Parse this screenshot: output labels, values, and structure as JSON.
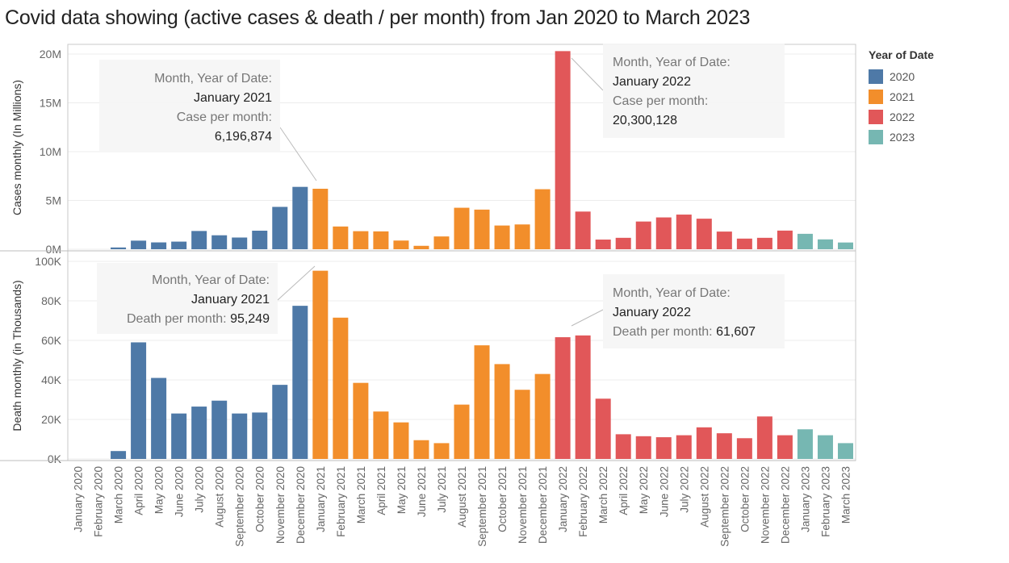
{
  "title": "Covid data  showing (active cases & death / per month) from Jan 2020 to March 2023",
  "legend": {
    "title": "Year of Date",
    "items": [
      {
        "label": "2020",
        "color": "#4e79a7"
      },
      {
        "label": "2021",
        "color": "#f28e2b"
      },
      {
        "label": "2022",
        "color": "#e15759"
      },
      {
        "label": "2023",
        "color": "#76b7b2"
      }
    ]
  },
  "chart_data": [
    {
      "type": "bar",
      "ylabel": "Cases monthly (In Millions)",
      "ylim": [
        0,
        21000000
      ],
      "yticks": [
        {
          "v": 0,
          "label": "0M"
        },
        {
          "v": 5000000,
          "label": "5M"
        },
        {
          "v": 10000000,
          "label": "10M"
        },
        {
          "v": 15000000,
          "label": "15M"
        },
        {
          "v": 20000000,
          "label": "20M"
        }
      ],
      "grid": true,
      "categories": [
        "January 2020",
        "February 2020",
        "March 2020",
        "April 2020",
        "May 2020",
        "June 2020",
        "July 2020",
        "August 2020",
        "September 2020",
        "October 2020",
        "November 2020",
        "December 2020",
        "January 2021",
        "February 2021",
        "March 2021",
        "April 2021",
        "May 2021",
        "June 2021",
        "July 2021",
        "August 2021",
        "September 2021",
        "October 2021",
        "November 2021",
        "December 2021",
        "January 2022",
        "February 2022",
        "March 2022",
        "April 2022",
        "May 2022",
        "June 2022",
        "July 2022",
        "August 2022",
        "September 2022",
        "October 2022",
        "November 2022",
        "December 2022",
        "January 2023",
        "February 2023",
        "March 2023"
      ],
      "years": [
        "2020",
        "2020",
        "2020",
        "2020",
        "2020",
        "2020",
        "2020",
        "2020",
        "2020",
        "2020",
        "2020",
        "2020",
        "2021",
        "2021",
        "2021",
        "2021",
        "2021",
        "2021",
        "2021",
        "2021",
        "2021",
        "2021",
        "2021",
        "2021",
        "2022",
        "2022",
        "2022",
        "2022",
        "2022",
        "2022",
        "2022",
        "2022",
        "2022",
        "2022",
        "2022",
        "2022",
        "2023",
        "2023",
        "2023"
      ],
      "values": [
        0,
        0,
        180000,
        880000,
        700000,
        780000,
        1870000,
        1430000,
        1200000,
        1900000,
        4340000,
        6390000,
        6196874,
        2330000,
        1850000,
        1830000,
        890000,
        350000,
        1310000,
        4250000,
        4060000,
        2430000,
        2540000,
        6150000,
        20300128,
        3860000,
        990000,
        1170000,
        2840000,
        3260000,
        3550000,
        3130000,
        1810000,
        1090000,
        1170000,
        1910000,
        1580000,
        1010000,
        690000
      ]
    },
    {
      "type": "bar",
      "ylabel": "Death monthly (in Thousands)",
      "ylim": [
        0,
        100000
      ],
      "yticks": [
        {
          "v": 0,
          "label": "0K"
        },
        {
          "v": 20000,
          "label": "20K"
        },
        {
          "v": 40000,
          "label": "40K"
        },
        {
          "v": 60000,
          "label": "60K"
        },
        {
          "v": 80000,
          "label": "80K"
        },
        {
          "v": 100000,
          "label": "100K"
        }
      ],
      "grid": true,
      "values": [
        0,
        0,
        4000,
        59000,
        41000,
        23000,
        26500,
        29500,
        23000,
        23500,
        37500,
        77500,
        95249,
        71500,
        38500,
        24000,
        18500,
        9500,
        8000,
        27500,
        57500,
        48000,
        35000,
        43000,
        61607,
        62500,
        30500,
        12500,
        11500,
        11000,
        12000,
        16000,
        13000,
        10500,
        21500,
        12000,
        15000,
        12000,
        8000
      ]
    }
  ],
  "tooltips": {
    "cases_2021": {
      "field": "Month, Year of Date:",
      "month": "January 2021",
      "measure": "Case per month:",
      "value": "6,196,874"
    },
    "cases_2022": {
      "field": "Month, Year of Date:",
      "month": "January 2022",
      "measure": "Case per month:",
      "value": "20,300,128"
    },
    "death_2021": {
      "field": "Month, Year of Date:",
      "month": "January 2021",
      "measure": "Death per month:",
      "value": "95,249"
    },
    "death_2022": {
      "field": "Month, Year of Date:",
      "month": "January 2022",
      "measure": "Death per month:",
      "value": "61,607"
    }
  }
}
